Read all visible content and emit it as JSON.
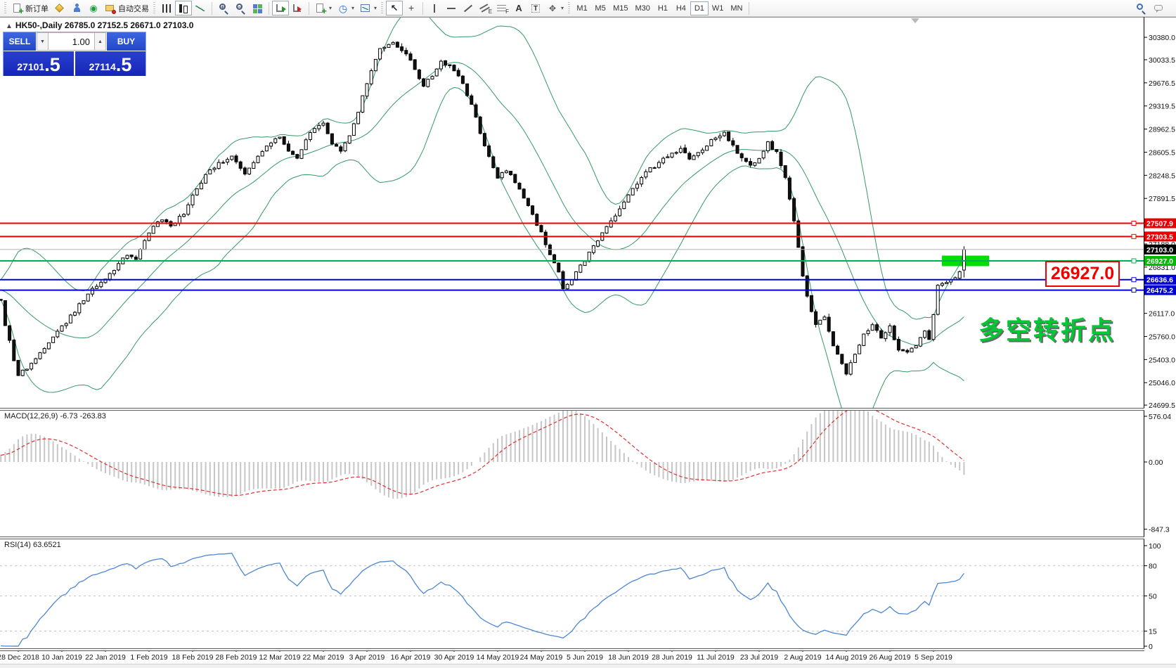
{
  "toolbar": {
    "new_order_label": "新订单",
    "autotrading_label": "自动交易",
    "timeframes": [
      "M1",
      "M5",
      "M15",
      "M30",
      "H1",
      "H4",
      "D1",
      "W1",
      "MN"
    ],
    "active_timeframe": "D1"
  },
  "chart": {
    "title_line": "HK50-,Daily 26785.0 27152.5 26671.0 27103.0",
    "collapse_arrow": "▲"
  },
  "trade_panel": {
    "sell_label": "SELL",
    "buy_label": "BUY",
    "volume": "1.00",
    "sell_price": {
      "main": "27101",
      "big": ".5"
    },
    "buy_price": {
      "main": "27114",
      "big": ".5"
    }
  },
  "indicators": {
    "macd_label": "MACD(12,26,9) -6.73 -263.83",
    "rsi_label": "RSI(14) 63.6521"
  },
  "annotations": {
    "turning_point_text": "多空转折点",
    "price_callout": "26927.0"
  },
  "chart_data": {
    "type": "candlestick",
    "symbol": "HK50",
    "timeframe": "Daily",
    "ohlc_last": {
      "open": 26785.0,
      "high": 27152.5,
      "low": 26671.0,
      "close": 27103.0
    },
    "price_axis_ticks": [
      30380.0,
      30033.5,
      29676.5,
      29319.5,
      28962.5,
      28605.5,
      28248.5,
      27891.5,
      27188.0,
      26831.0,
      26117.0,
      25760.0,
      25403.0,
      25046.0,
      24699.5
    ],
    "hlines": [
      {
        "price": 27507.9,
        "color": "#ee0000",
        "label_bg": "#e80000",
        "width": 2,
        "handle": true
      },
      {
        "price": 27303.5,
        "color": "#ee0000",
        "label_bg": "#e80000",
        "width": 2,
        "handle": true
      },
      {
        "price": 27103.0,
        "color": "#b4b4b4",
        "label_bg": "#000000",
        "width": 1,
        "handle": false
      },
      {
        "price": 26927.0,
        "color": "#00b050",
        "label_bg": "#00bc00",
        "width": 2,
        "handle": true
      },
      {
        "price": 26636.6,
        "color": "#0000e0",
        "label_bg": "#0000d0",
        "width": 2,
        "handle": true
      },
      {
        "price": 26475.2,
        "color": "#0000e0",
        "label_bg": "#0000d0",
        "width": 2,
        "handle": true
      }
    ],
    "highlight_box": {
      "price": 26927.0,
      "color": "#00e000"
    },
    "date_ticks": [
      "28 Dec 2018",
      "10 Jan 2019",
      "22 Jan 2019",
      "1 Feb 2019",
      "18 Feb 2019",
      "28 Feb 2019",
      "12 Mar 2019",
      "22 Mar 2019",
      "3 Apr 2019",
      "16 Apr 2019",
      "30 Apr 2019",
      "14 May 2019",
      "24 May 2019",
      "5 Jun 2019",
      "18 Jun 2019",
      "28 Jun 2019",
      "11 Jul 2019",
      "23 Jul 2019",
      "2 Aug 2019",
      "14 Aug 2019",
      "26 Aug 2019",
      "5 Sep 2019"
    ],
    "bars_total": 222,
    "price_anchors": [
      [
        -40,
        26950
      ],
      [
        -30,
        26750
      ],
      [
        -20,
        26600
      ],
      [
        -10,
        26500
      ],
      [
        -3,
        26420
      ],
      [
        0,
        26300
      ],
      [
        1,
        25950
      ],
      [
        3,
        25400
      ],
      [
        4,
        25150
      ],
      [
        6,
        25280
      ],
      [
        9,
        25520
      ],
      [
        12,
        25760
      ],
      [
        14,
        25900
      ],
      [
        17,
        26160
      ],
      [
        20,
        26420
      ],
      [
        24,
        26650
      ],
      [
        27,
        26870
      ],
      [
        29,
        27020
      ],
      [
        31,
        26930
      ],
      [
        34,
        27380
      ],
      [
        37,
        27580
      ],
      [
        39,
        27460
      ],
      [
        42,
        27660
      ],
      [
        44,
        27950
      ],
      [
        47,
        28240
      ],
      [
        50,
        28440
      ],
      [
        53,
        28520
      ],
      [
        56,
        28270
      ],
      [
        59,
        28560
      ],
      [
        62,
        28760
      ],
      [
        64,
        28860
      ],
      [
        66,
        28620
      ],
      [
        68,
        28520
      ],
      [
        71,
        28900
      ],
      [
        74,
        29080
      ],
      [
        76,
        28720
      ],
      [
        78,
        28620
      ],
      [
        81,
        29020
      ],
      [
        84,
        29680
      ],
      [
        87,
        30180
      ],
      [
        90,
        30300
      ],
      [
        93,
        30140
      ],
      [
        95,
        29860
      ],
      [
        97,
        29620
      ],
      [
        99,
        29800
      ],
      [
        101,
        29990
      ],
      [
        103,
        29960
      ],
      [
        106,
        29680
      ],
      [
        108,
        29320
      ],
      [
        110,
        28920
      ],
      [
        112,
        28520
      ],
      [
        114,
        28220
      ],
      [
        116,
        28330
      ],
      [
        118,
        28160
      ],
      [
        120,
        27920
      ],
      [
        122,
        27620
      ],
      [
        124,
        27380
      ],
      [
        126,
        27020
      ],
      [
        128,
        26780
      ],
      [
        129,
        26480
      ],
      [
        131,
        26640
      ],
      [
        134,
        26940
      ],
      [
        137,
        27240
      ],
      [
        140,
        27540
      ],
      [
        144,
        27940
      ],
      [
        148,
        28290
      ],
      [
        152,
        28490
      ],
      [
        156,
        28640
      ],
      [
        158,
        28510
      ],
      [
        160,
        28610
      ],
      [
        162,
        28710
      ],
      [
        164,
        28840
      ],
      [
        166,
        28900
      ],
      [
        168,
        28710
      ],
      [
        170,
        28510
      ],
      [
        172,
        28410
      ],
      [
        174,
        28510
      ],
      [
        176,
        28740
      ],
      [
        178,
        28590
      ],
      [
        180,
        28210
      ],
      [
        182,
        27520
      ],
      [
        184,
        26720
      ],
      [
        185,
        26380
      ],
      [
        187,
        25960
      ],
      [
        189,
        26060
      ],
      [
        191,
        25620
      ],
      [
        193,
        25320
      ],
      [
        194,
        25160
      ],
      [
        196,
        25500
      ],
      [
        198,
        25800
      ],
      [
        200,
        25950
      ],
      [
        202,
        25720
      ],
      [
        204,
        25900
      ],
      [
        206,
        25560
      ],
      [
        208,
        25500
      ],
      [
        210,
        25620
      ],
      [
        212,
        25850
      ],
      [
        213,
        25720
      ],
      [
        214,
        26100
      ],
      [
        215,
        26550
      ],
      [
        217,
        26600
      ],
      [
        219,
        26660
      ],
      [
        220,
        26760
      ],
      [
        221,
        27103
      ]
    ],
    "bollinger": {
      "period": 20,
      "deviation": 2,
      "color": "#339966"
    },
    "macd": {
      "params": "12,26,9",
      "main_value": -6.73,
      "signal_value": -263.83,
      "axis_ticks": [
        576.04,
        0.0,
        -847.3
      ],
      "hist_color": "#c6c6c6",
      "signal_color": "#e03030"
    },
    "rsi": {
      "period": 14,
      "value": 63.6521,
      "axis_ticks": [
        100,
        80,
        50,
        15,
        0
      ],
      "levels": [
        80,
        50,
        15
      ],
      "color": "#4d86d2",
      "level_color": "#c4c4c4"
    },
    "candle_colors": {
      "bull": "#ffffff",
      "bear": "#111111",
      "outline": "#000000"
    }
  }
}
